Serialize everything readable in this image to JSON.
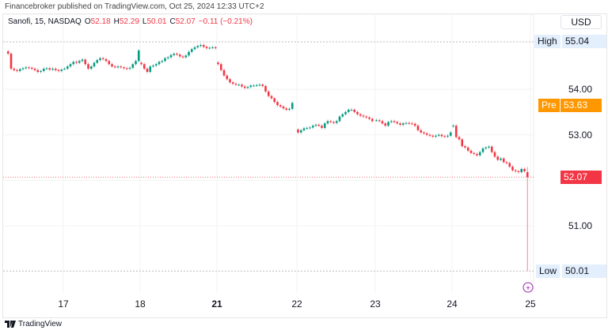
{
  "header": {
    "published": "Financebroker published on TradingView.com, Oct 25, 2024 12:33 UTC+2"
  },
  "legend": {
    "symbol": "Sanofi, 15, NASDAQ",
    "o_label": "O",
    "o": "52.18",
    "h_label": "H",
    "h": "52.29",
    "l_label": "L",
    "l": "50.01",
    "c_label": "C",
    "c": "52.07",
    "change": "−0.11 (−0.21%)"
  },
  "price_axis": {
    "currency": "USD",
    "ticks": [
      "54.00",
      "53.00",
      "51.00"
    ],
    "high_label": "High",
    "high": "55.04",
    "low_label": "Low",
    "low": "50.01",
    "pre_label": "Pre",
    "pre": "53.63",
    "last": "52.07"
  },
  "time_axis": {
    "ticks": [
      "17",
      "18",
      "21",
      "22",
      "23",
      "24",
      "25"
    ]
  },
  "footer": {
    "brand": "TradingView"
  },
  "colors": {
    "up": "#089981",
    "down": "#f23645",
    "pre": "#ff9800",
    "label_bg": "#e3effd"
  },
  "chart_data": {
    "type": "candlestick",
    "interval": "15",
    "days": [
      "16",
      "17",
      "18",
      "21",
      "22",
      "23",
      "24"
    ],
    "closes": [
      [
        54.78,
        54.45,
        54.42,
        54.4,
        54.44,
        54.46,
        54.48,
        54.47,
        54.45,
        54.42,
        54.38,
        54.4,
        54.45,
        54.46,
        54.43,
        54.45,
        54.42,
        54.4,
        54.43
      ],
      [
        54.45,
        54.5,
        54.55,
        54.6,
        54.58,
        54.62,
        54.65,
        54.55,
        54.45,
        54.5,
        54.58,
        54.64,
        54.68,
        54.66,
        54.62,
        54.55,
        54.5,
        54.48,
        54.5,
        54.48,
        54.46,
        54.45,
        54.47,
        54.55,
        54.62,
        54.85
      ],
      [
        54.55,
        54.45,
        54.38,
        54.5,
        54.52,
        54.55,
        54.6,
        54.62,
        54.68,
        54.7,
        54.75,
        54.78,
        54.76,
        54.72,
        54.7,
        54.74,
        54.82,
        54.88,
        54.92,
        54.95,
        54.97,
        54.93,
        54.9,
        54.91,
        54.92,
        54.9
      ],
      [
        54.55,
        54.42,
        54.3,
        54.22,
        54.15,
        54.12,
        54.1,
        54.1,
        54.06,
        54.03,
        54.05,
        54.08,
        54.08,
        54.09,
        54.1,
        54.07,
        53.95,
        53.85,
        53.8,
        53.72,
        53.65,
        53.62,
        53.58,
        53.55,
        53.57,
        53.7
      ],
      [
        53.05,
        53.1,
        53.14,
        53.15,
        53.16,
        53.2,
        53.22,
        53.2,
        53.15,
        53.25,
        53.3,
        53.28,
        53.26,
        53.3,
        53.4,
        53.45,
        53.5,
        53.55,
        53.55,
        53.5,
        53.45,
        53.42,
        53.4,
        53.38,
        53.35,
        53.3
      ],
      [
        53.32,
        53.3,
        53.25,
        53.2,
        53.28,
        53.3,
        53.28,
        53.25,
        53.22,
        53.25,
        53.26,
        53.25,
        53.24,
        53.2,
        53.1,
        53.05,
        53.03,
        53.0,
        52.98,
        52.96,
        52.98,
        53.0,
        52.97,
        52.96,
        52.98,
        53.05
      ],
      [
        53.2,
        52.95,
        52.9,
        52.75,
        52.72,
        52.65,
        52.6,
        52.58,
        52.55,
        52.62,
        52.7,
        52.72,
        52.74,
        52.62,
        52.52,
        52.45,
        52.48,
        52.4,
        52.38,
        52.3,
        52.22,
        52.2,
        52.18,
        52.25,
        52.2,
        52.07
      ]
    ],
    "last_bar": {
      "open": 52.18,
      "high": 52.29,
      "low": 50.01,
      "close": 52.07
    },
    "high": 55.04,
    "low": 50.01,
    "pre": 53.63
  }
}
